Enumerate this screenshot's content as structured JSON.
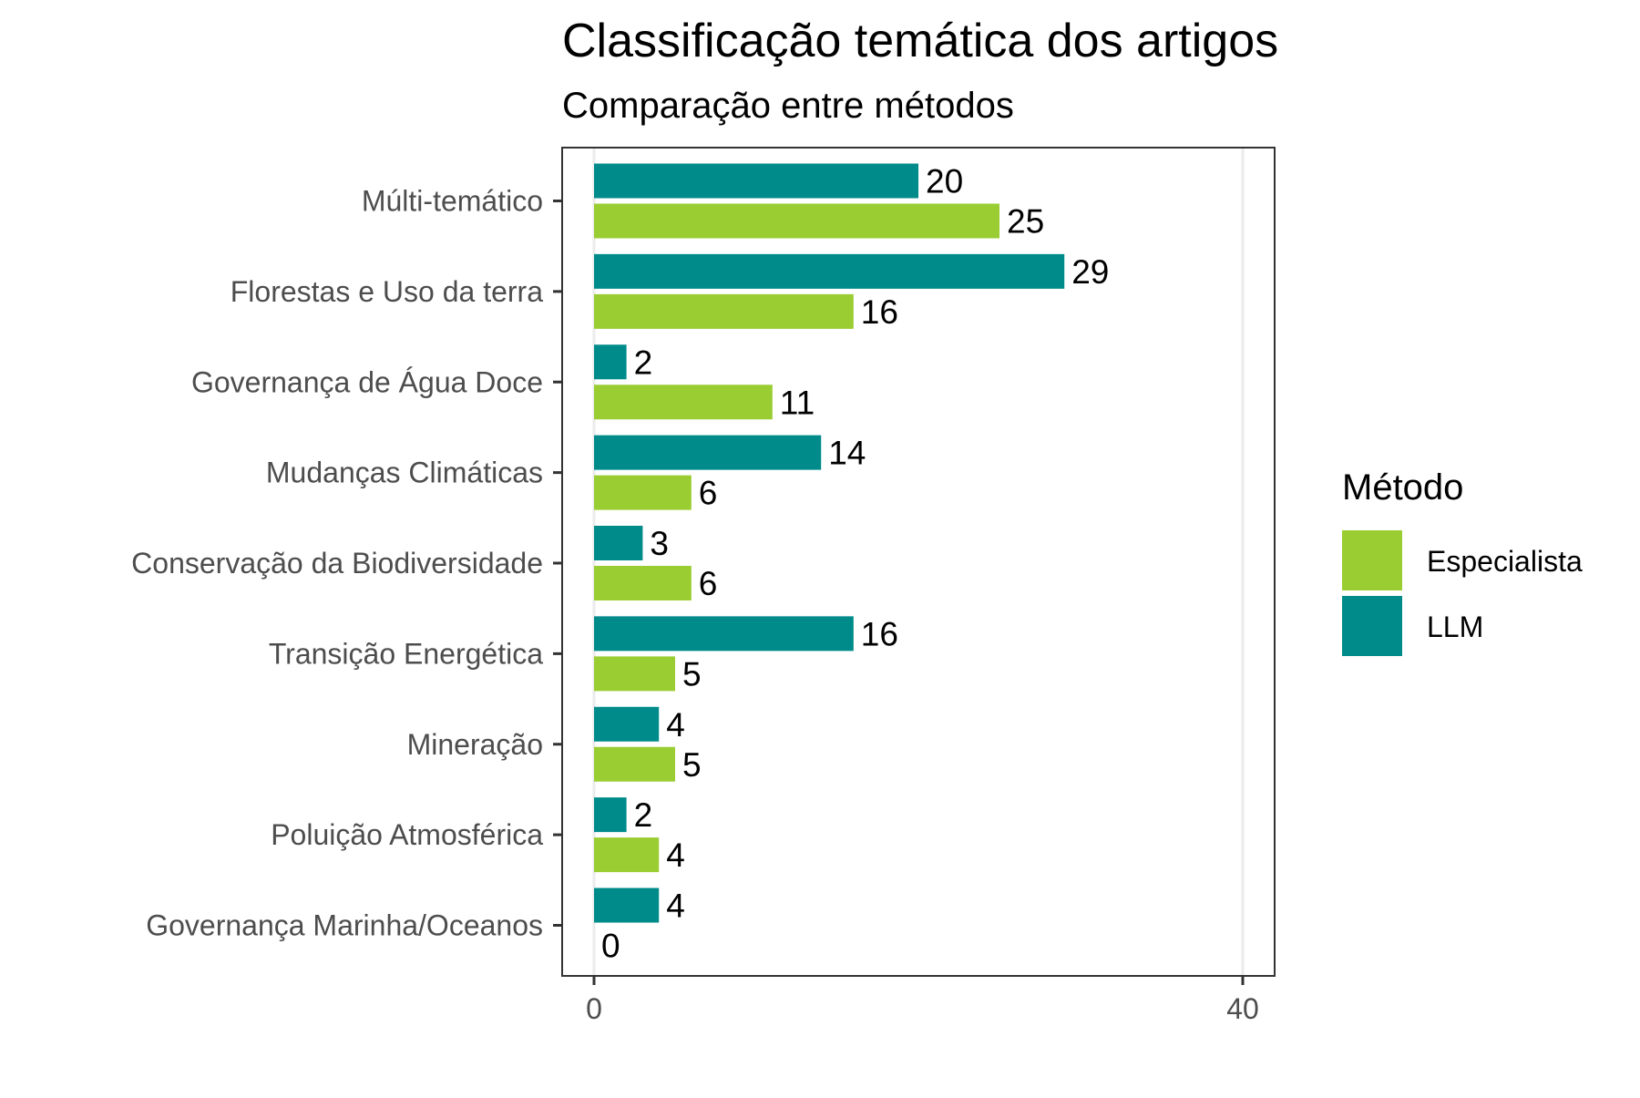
{
  "chart_data": {
    "type": "bar",
    "orientation": "horizontal",
    "title": "Classificação temática dos artigos",
    "subtitle": "Comparação entre métodos",
    "xlabel": "",
    "ylabel": "",
    "xlim": [
      0,
      42
    ],
    "x_ticks": [
      0,
      40
    ],
    "grid": true,
    "legend_title": "Método",
    "legend_position": "right",
    "categories": [
      "Múlti-temático",
      "Florestas e Uso da terra",
      "Governança de Água Doce",
      "Mudanças Climáticas",
      "Conservação da Biodiversidade",
      "Transição Energética",
      "Mineração",
      "Poluição Atmosférica",
      "Governança Marinha/Oceanos"
    ],
    "series": [
      {
        "name": "Especialista",
        "color": "#9ACD32",
        "values": [
          25,
          16,
          11,
          6,
          6,
          5,
          5,
          4,
          0
        ]
      },
      {
        "name": "LLM",
        "color": "#008B8B",
        "values": [
          20,
          29,
          2,
          14,
          3,
          16,
          4,
          2,
          4
        ]
      }
    ]
  }
}
